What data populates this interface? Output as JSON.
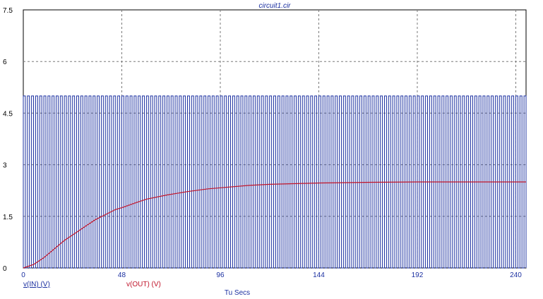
{
  "chart_data": {
    "type": "line",
    "title": "circuit1.cir",
    "xlabel": "Tu Secs",
    "ylabel": "",
    "xlim": [
      0,
      245
    ],
    "ylim": [
      0,
      7.5
    ],
    "x_ticks": [
      "0",
      "48",
      "96",
      "144",
      "192",
      "240"
    ],
    "y_ticks": [
      "0",
      "1.5",
      "3",
      "4.5",
      "6",
      "7.5"
    ],
    "grid": true,
    "legend_placement": "bottom-left",
    "series": [
      {
        "name": "v(IN) (V)",
        "color": "#1a2fa0",
        "kind": "square-wave",
        "low": 0,
        "high": 5,
        "period": 2,
        "duty": 0.5,
        "x_start": 0,
        "x_end": 245
      },
      {
        "name": "v(OUT) (V)",
        "color": "#c0142a",
        "kind": "sampled",
        "x": [
          0,
          5,
          10,
          15,
          20,
          25,
          30,
          35,
          40,
          45,
          48,
          55,
          60,
          70,
          80,
          90,
          96,
          110,
          120,
          144,
          170,
          192,
          220,
          245
        ],
        "y": [
          0,
          0.1,
          0.3,
          0.55,
          0.8,
          1.0,
          1.2,
          1.4,
          1.55,
          1.7,
          1.75,
          1.9,
          2.0,
          2.12,
          2.22,
          2.3,
          2.33,
          2.4,
          2.43,
          2.47,
          2.49,
          2.5,
          2.5,
          2.5
        ]
      }
    ]
  }
}
